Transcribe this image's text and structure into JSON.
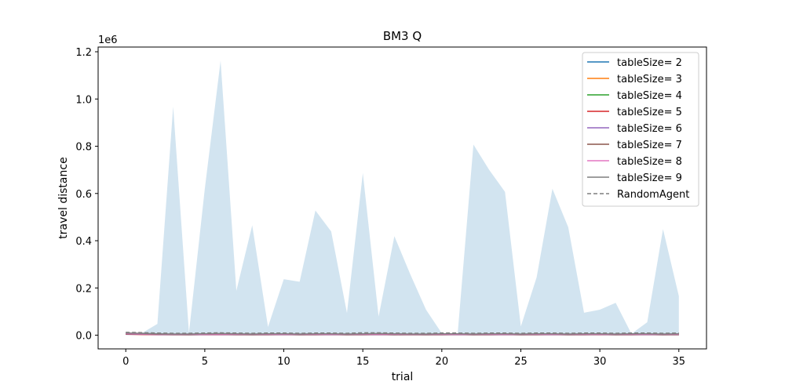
{
  "chart_data": {
    "type": "line",
    "title": "BM3  Q",
    "xlabel": "trial",
    "ylabel": "travel distance",
    "y_offset_text": "1e6",
    "xlim": [
      -1.75,
      36.75
    ],
    "ylim": [
      -0.058,
      1.22
    ],
    "x_ticks": [
      0,
      5,
      10,
      15,
      20,
      25,
      30,
      35
    ],
    "x_tick_labels": [
      "0",
      "5",
      "10",
      "15",
      "20",
      "25",
      "30",
      "35"
    ],
    "y_ticks": [
      0.0,
      0.2,
      0.4,
      0.6,
      0.8,
      1.0,
      1.2
    ],
    "y_tick_labels": [
      "0.0",
      "0.2",
      "0.4",
      "0.6",
      "0.8",
      "1.0",
      "1.2"
    ],
    "grid": false,
    "legend_position": "top-right",
    "x": [
      0,
      1,
      2,
      3,
      4,
      5,
      6,
      7,
      8,
      9,
      10,
      11,
      12,
      13,
      14,
      15,
      16,
      17,
      18,
      19,
      20,
      21,
      22,
      23,
      24,
      25,
      26,
      27,
      28,
      29,
      30,
      31,
      32,
      33,
      34,
      35
    ],
    "band": {
      "color": "#1f77b4",
      "upper": [
        0.01,
        0.008,
        0.048,
        0.968,
        0.01,
        0.62,
        1.162,
        0.188,
        0.465,
        0.035,
        0.237,
        0.226,
        0.528,
        0.439,
        0.094,
        0.687,
        0.079,
        0.419,
        0.258,
        0.108,
        0.008,
        0.006,
        0.807,
        0.7,
        0.607,
        0.037,
        0.245,
        0.62,
        0.457,
        0.095,
        0.108,
        0.137,
        0.006,
        0.055,
        0.449,
        0.165
      ],
      "lower": [
        0.0,
        0.0,
        0.0,
        0.0,
        0.0,
        0.0,
        0.0,
        0.0,
        0.0,
        0.0,
        0.0,
        0.0,
        0.0,
        0.0,
        0.0,
        0.0,
        0.0,
        0.0,
        0.0,
        0.0,
        0.0,
        0.0,
        0.0,
        0.0,
        0.0,
        0.0,
        0.0,
        0.0,
        0.0,
        0.0,
        0.0,
        0.0,
        0.0,
        0.0,
        0.0,
        0.0
      ]
    },
    "series": [
      {
        "name": "tableSize= 2",
        "color": "#1f77b4",
        "dash": false,
        "values": [
          0.008,
          0.006,
          0.004,
          0.004,
          0.003,
          0.004,
          0.004,
          0.004,
          0.003,
          0.004,
          0.004,
          0.003,
          0.004,
          0.004,
          0.003,
          0.004,
          0.004,
          0.003,
          0.004,
          0.003,
          0.004,
          0.004,
          0.003,
          0.004,
          0.004,
          0.003,
          0.004,
          0.004,
          0.003,
          0.004,
          0.004,
          0.003,
          0.004,
          0.004,
          0.003,
          0.004
        ]
      },
      {
        "name": "tableSize= 3",
        "color": "#ff7f0e",
        "dash": false,
        "values": [
          0.006,
          0.005,
          0.004,
          0.003,
          0.003,
          0.003,
          0.004,
          0.003,
          0.003,
          0.003,
          0.003,
          0.003,
          0.003,
          0.003,
          0.003,
          0.003,
          0.003,
          0.003,
          0.003,
          0.003,
          0.003,
          0.003,
          0.003,
          0.003,
          0.003,
          0.003,
          0.003,
          0.003,
          0.003,
          0.003,
          0.003,
          0.003,
          0.003,
          0.003,
          0.003,
          0.003
        ]
      },
      {
        "name": "tableSize= 4",
        "color": "#2ca02c",
        "dash": false,
        "values": [
          0.005,
          0.004,
          0.003,
          0.003,
          0.002,
          0.003,
          0.003,
          0.003,
          0.002,
          0.003,
          0.003,
          0.002,
          0.003,
          0.003,
          0.002,
          0.003,
          0.003,
          0.002,
          0.003,
          0.002,
          0.003,
          0.003,
          0.002,
          0.003,
          0.003,
          0.002,
          0.003,
          0.003,
          0.002,
          0.003,
          0.003,
          0.002,
          0.003,
          0.003,
          0.002,
          0.003
        ]
      },
      {
        "name": "tableSize= 5",
        "color": "#d62728",
        "dash": false,
        "values": [
          0.004,
          0.003,
          0.002,
          0.002,
          0.002,
          0.002,
          0.002,
          0.002,
          0.002,
          0.002,
          0.002,
          0.002,
          0.002,
          0.002,
          0.002,
          0.002,
          0.002,
          0.002,
          0.002,
          0.002,
          0.002,
          0.002,
          0.002,
          0.002,
          0.002,
          0.002,
          0.002,
          0.002,
          0.002,
          0.002,
          0.002,
          0.002,
          0.002,
          0.002,
          0.002,
          0.002
        ]
      },
      {
        "name": "tableSize= 6",
        "color": "#9467bd",
        "dash": false,
        "values": [
          0.005,
          0.004,
          0.003,
          0.002,
          0.002,
          0.003,
          0.003,
          0.002,
          0.002,
          0.002,
          0.003,
          0.002,
          0.002,
          0.003,
          0.002,
          0.002,
          0.003,
          0.002,
          0.002,
          0.002,
          0.002,
          0.003,
          0.002,
          0.002,
          0.003,
          0.002,
          0.002,
          0.003,
          0.002,
          0.002,
          0.003,
          0.002,
          0.002,
          0.003,
          0.002,
          0.002
        ]
      },
      {
        "name": "tableSize= 7",
        "color": "#8c564b",
        "dash": false,
        "values": [
          0.006,
          0.005,
          0.004,
          0.003,
          0.003,
          0.004,
          0.004,
          0.003,
          0.003,
          0.003,
          0.004,
          0.003,
          0.003,
          0.004,
          0.003,
          0.003,
          0.004,
          0.003,
          0.003,
          0.003,
          0.003,
          0.004,
          0.003,
          0.003,
          0.004,
          0.003,
          0.003,
          0.004,
          0.003,
          0.003,
          0.004,
          0.003,
          0.003,
          0.004,
          0.003,
          0.003
        ]
      },
      {
        "name": "tableSize= 8",
        "color": "#e377c2",
        "dash": false,
        "values": [
          0.007,
          0.006,
          0.005,
          0.004,
          0.004,
          0.004,
          0.005,
          0.004,
          0.004,
          0.004,
          0.004,
          0.004,
          0.004,
          0.004,
          0.004,
          0.004,
          0.005,
          0.004,
          0.004,
          0.004,
          0.004,
          0.004,
          0.004,
          0.004,
          0.004,
          0.004,
          0.004,
          0.004,
          0.004,
          0.004,
          0.004,
          0.004,
          0.004,
          0.004,
          0.004,
          0.004
        ]
      },
      {
        "name": "tableSize= 9",
        "color": "#7f7f7f",
        "dash": false,
        "values": [
          0.009,
          0.008,
          0.006,
          0.005,
          0.005,
          0.006,
          0.007,
          0.006,
          0.005,
          0.006,
          0.006,
          0.005,
          0.006,
          0.006,
          0.005,
          0.006,
          0.007,
          0.006,
          0.005,
          0.005,
          0.006,
          0.006,
          0.005,
          0.006,
          0.006,
          0.005,
          0.006,
          0.006,
          0.005,
          0.006,
          0.006,
          0.005,
          0.006,
          0.006,
          0.005,
          0.006
        ]
      },
      {
        "name": "RandomAgent",
        "color": "#7f7f7f",
        "dash": true,
        "values": [
          0.012,
          0.011,
          0.009,
          0.008,
          0.008,
          0.009,
          0.01,
          0.009,
          0.008,
          0.009,
          0.009,
          0.008,
          0.009,
          0.009,
          0.008,
          0.01,
          0.01,
          0.009,
          0.008,
          0.008,
          0.009,
          0.009,
          0.008,
          0.009,
          0.009,
          0.008,
          0.009,
          0.009,
          0.008,
          0.009,
          0.009,
          0.008,
          0.009,
          0.009,
          0.008,
          0.009
        ]
      }
    ]
  }
}
